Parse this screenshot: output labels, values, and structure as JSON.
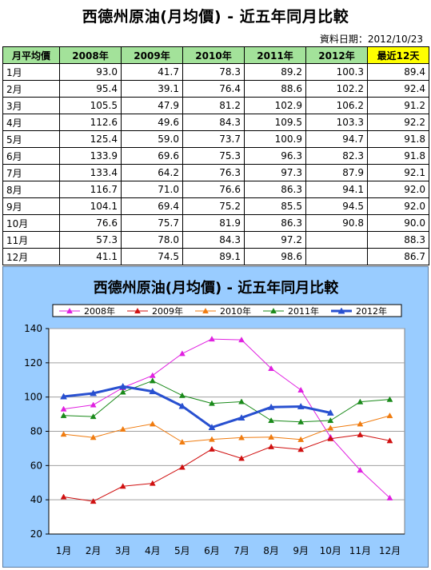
{
  "header": {
    "title": "西德州原油(月均價) - 近五年同月比較",
    "date_label": "資料日期：2012/10/23"
  },
  "table": {
    "columns": [
      "月平均價",
      "2008年",
      "2009年",
      "2010年",
      "2011年",
      "2012年",
      "最近12天"
    ],
    "rows": [
      {
        "month": "1月",
        "values": [
          "93.0",
          "41.7",
          "78.3",
          "89.2",
          "100.3",
          "89.4"
        ]
      },
      {
        "month": "2月",
        "values": [
          "95.4",
          "39.1",
          "76.4",
          "88.6",
          "102.2",
          "92.4"
        ]
      },
      {
        "month": "3月",
        "values": [
          "105.5",
          "47.9",
          "81.2",
          "102.9",
          "106.2",
          "91.2"
        ]
      },
      {
        "month": "4月",
        "values": [
          "112.6",
          "49.6",
          "84.3",
          "109.5",
          "103.3",
          "92.2"
        ]
      },
      {
        "month": "5月",
        "values": [
          "125.4",
          "59.0",
          "73.7",
          "100.9",
          "94.7",
          "91.8"
        ]
      },
      {
        "month": "6月",
        "values": [
          "133.9",
          "69.6",
          "75.3",
          "96.3",
          "82.3",
          "91.8"
        ]
      },
      {
        "month": "7月",
        "values": [
          "133.4",
          "64.2",
          "76.3",
          "97.3",
          "87.9",
          "92.1"
        ]
      },
      {
        "month": "8月",
        "values": [
          "116.7",
          "71.0",
          "76.6",
          "86.3",
          "94.1",
          "92.0"
        ]
      },
      {
        "month": "9月",
        "values": [
          "104.1",
          "69.4",
          "75.2",
          "85.5",
          "94.5",
          "92.0"
        ]
      },
      {
        "month": "10月",
        "values": [
          "76.6",
          "75.7",
          "81.9",
          "86.3",
          "90.8",
          "90.0"
        ]
      },
      {
        "month": "11月",
        "values": [
          "57.3",
          "78.0",
          "84.3",
          "97.2",
          "",
          "88.3"
        ]
      },
      {
        "month": "12月",
        "values": [
          "41.1",
          "74.5",
          "89.1",
          "98.6",
          "",
          "86.7"
        ]
      }
    ]
  },
  "chart_data": {
    "type": "line",
    "title": "西德州原油(月均價) - 近五年同月比較",
    "categories": [
      "1月",
      "2月",
      "3月",
      "4月",
      "5月",
      "6月",
      "7月",
      "8月",
      "9月",
      "10月",
      "11月",
      "12月"
    ],
    "ylim": [
      20,
      140
    ],
    "yticks": [
      20,
      40,
      60,
      80,
      100,
      120,
      140
    ],
    "grid": true,
    "legend_position": "top",
    "series": [
      {
        "name": "2008年",
        "color": "#e020e0",
        "marker": "triangle",
        "width": 1,
        "values": [
          93.0,
          95.4,
          105.5,
          112.6,
          125.4,
          133.9,
          133.4,
          116.7,
          104.1,
          76.6,
          57.3,
          41.1
        ]
      },
      {
        "name": "2009年",
        "color": "#d01010",
        "marker": "triangle",
        "width": 1,
        "values": [
          41.7,
          39.1,
          47.9,
          49.6,
          59.0,
          69.6,
          64.2,
          71.0,
          69.4,
          75.7,
          78.0,
          74.5
        ]
      },
      {
        "name": "2010年",
        "color": "#f07c10",
        "marker": "triangle",
        "width": 1,
        "values": [
          78.3,
          76.4,
          81.2,
          84.3,
          73.7,
          75.3,
          76.3,
          76.6,
          75.2,
          81.9,
          84.3,
          89.1
        ]
      },
      {
        "name": "2011年",
        "color": "#1a8a1a",
        "marker": "triangle",
        "width": 1,
        "values": [
          89.2,
          88.6,
          102.9,
          109.5,
          100.9,
          96.3,
          97.3,
          86.3,
          85.5,
          86.3,
          97.2,
          98.6
        ]
      },
      {
        "name": "2012年",
        "color": "#2850d0",
        "marker": "triangle",
        "width": 3,
        "values": [
          100.3,
          102.2,
          106.2,
          103.3,
          94.7,
          82.3,
          87.9,
          94.1,
          94.5,
          90.8,
          null,
          null
        ]
      }
    ]
  }
}
